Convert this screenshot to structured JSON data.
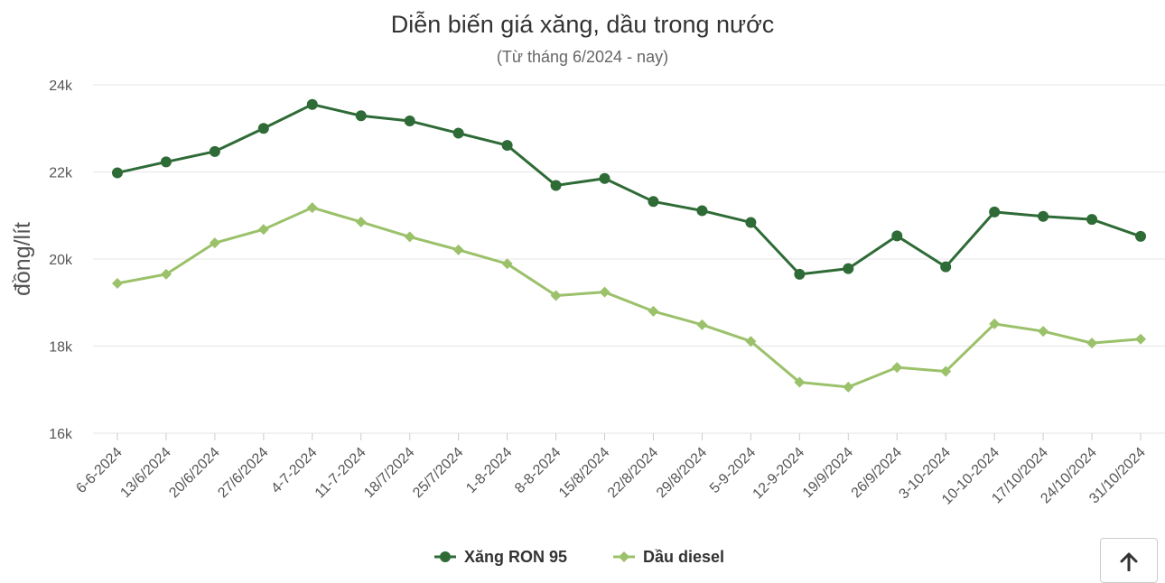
{
  "chart_data": {
    "type": "line",
    "title": "Diễn biến giá xăng, dầu trong nước",
    "subtitle": "(Từ tháng 6/2024 - nay)",
    "xlabel": "",
    "ylabel": "đồng/lít",
    "ylim": [
      16000,
      24000
    ],
    "yticks": [
      16000,
      18000,
      20000,
      22000,
      24000
    ],
    "ytick_labels": [
      "16k",
      "18k",
      "20k",
      "22k",
      "24k"
    ],
    "grid": true,
    "legend_position": "bottom-center",
    "categories": [
      "6-6-2024",
      "13/6/2024",
      "20/6/2024",
      "27/6/2024",
      "4-7-2024",
      "11-7-2024",
      "18/7/2024",
      "25/7/2024",
      "1-8-2024",
      "8-8-2024",
      "15/8/2024",
      "22/8/2024",
      "29/8/2024",
      "5-9-2024",
      "12-9-2024",
      "19/9/2024",
      "26/9/2024",
      "3-10-2024",
      "10-10-2024",
      "17/10/2024",
      "24/10/2024",
      "31/10/2024"
    ],
    "series": [
      {
        "name": "Xăng RON 95",
        "color": "#2e6b36",
        "marker": "circle",
        "values": [
          21980,
          22230,
          22470,
          23000,
          23550,
          23290,
          23170,
          22890,
          22610,
          21690,
          21850,
          21320,
          21110,
          20840,
          19650,
          19780,
          20530,
          19820,
          21080,
          20980,
          20910,
          20520
        ]
      },
      {
        "name": "Dầu diesel",
        "color": "#9bc16a",
        "marker": "diamond",
        "values": [
          19440,
          19650,
          20370,
          20680,
          21180,
          20850,
          20510,
          20210,
          19890,
          19160,
          19240,
          18800,
          18490,
          18110,
          17170,
          17060,
          17510,
          17420,
          18510,
          18340,
          18070,
          18160
        ]
      }
    ]
  },
  "ui": {
    "scroll_top_icon": "arrow-up-icon"
  }
}
